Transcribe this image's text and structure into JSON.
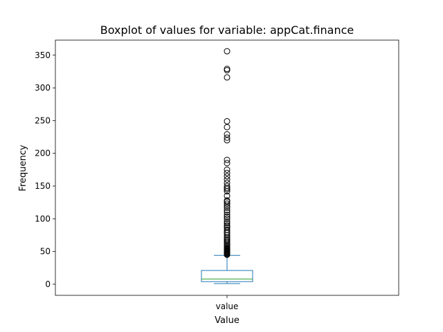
{
  "chart_data": {
    "type": "boxplot",
    "title": "Boxplot of values for variable: appCat.finance",
    "xlabel": "Value",
    "ylabel": "Frequency",
    "categories": [
      "value"
    ],
    "ylim": [
      -17,
      373
    ],
    "yticks": [
      0,
      50,
      100,
      150,
      200,
      250,
      300,
      350
    ],
    "grid": false,
    "colors": {
      "box": "#1f77b4",
      "median": "#2ca02c",
      "flier": "#000000"
    },
    "series": [
      {
        "category": "value",
        "whisker_low": 1,
        "q1": 4,
        "median": 8,
        "q3": 21,
        "whisker_high": 44,
        "outliers": [
          45,
          46,
          47,
          48,
          49,
          50,
          51,
          52,
          53,
          54,
          55,
          57,
          59,
          60,
          62,
          64,
          66,
          68,
          70,
          72,
          75,
          78,
          80,
          83,
          86,
          88,
          90,
          93,
          96,
          100,
          103,
          106,
          110,
          113,
          117,
          120,
          123,
          126,
          128,
          135,
          142,
          145,
          147,
          150,
          155,
          160,
          165,
          170,
          175,
          185,
          190,
          220,
          224,
          229,
          240,
          249,
          316,
          327,
          329,
          356
        ]
      }
    ]
  }
}
